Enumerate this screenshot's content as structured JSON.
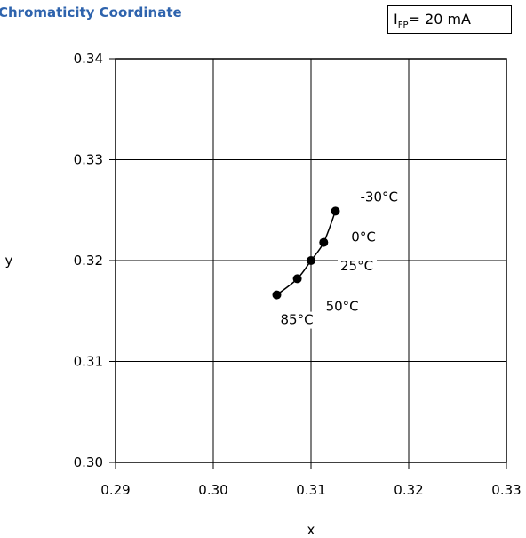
{
  "title": "Chromaticity Coordinate",
  "condition": {
    "symbol": "I",
    "subscript": "FP",
    "value": "= 20 mA"
  },
  "chart_data": {
    "type": "line",
    "title": "Chromaticity Coordinate",
    "xlabel": "x",
    "ylabel": "y",
    "xlim": [
      0.29,
      0.33
    ],
    "ylim": [
      0.3,
      0.34
    ],
    "xticks": [
      "0.29",
      "0.30",
      "0.31",
      "0.32",
      "0.33"
    ],
    "yticks": [
      "0.30",
      "0.31",
      "0.32",
      "0.33",
      "0.34"
    ],
    "grid": true,
    "series": [
      {
        "points": [
          {
            "x": 0.3065,
            "y": 0.3166,
            "label": "85°C"
          },
          {
            "x": 0.3086,
            "y": 0.3182,
            "label": "50°C"
          },
          {
            "x": 0.31,
            "y": 0.32,
            "label": "25°C"
          },
          {
            "x": 0.3113,
            "y": 0.3218,
            "label": "0°C"
          },
          {
            "x": 0.3125,
            "y": 0.3249,
            "label": "-30°C"
          }
        ]
      }
    ],
    "color": "#000000"
  }
}
